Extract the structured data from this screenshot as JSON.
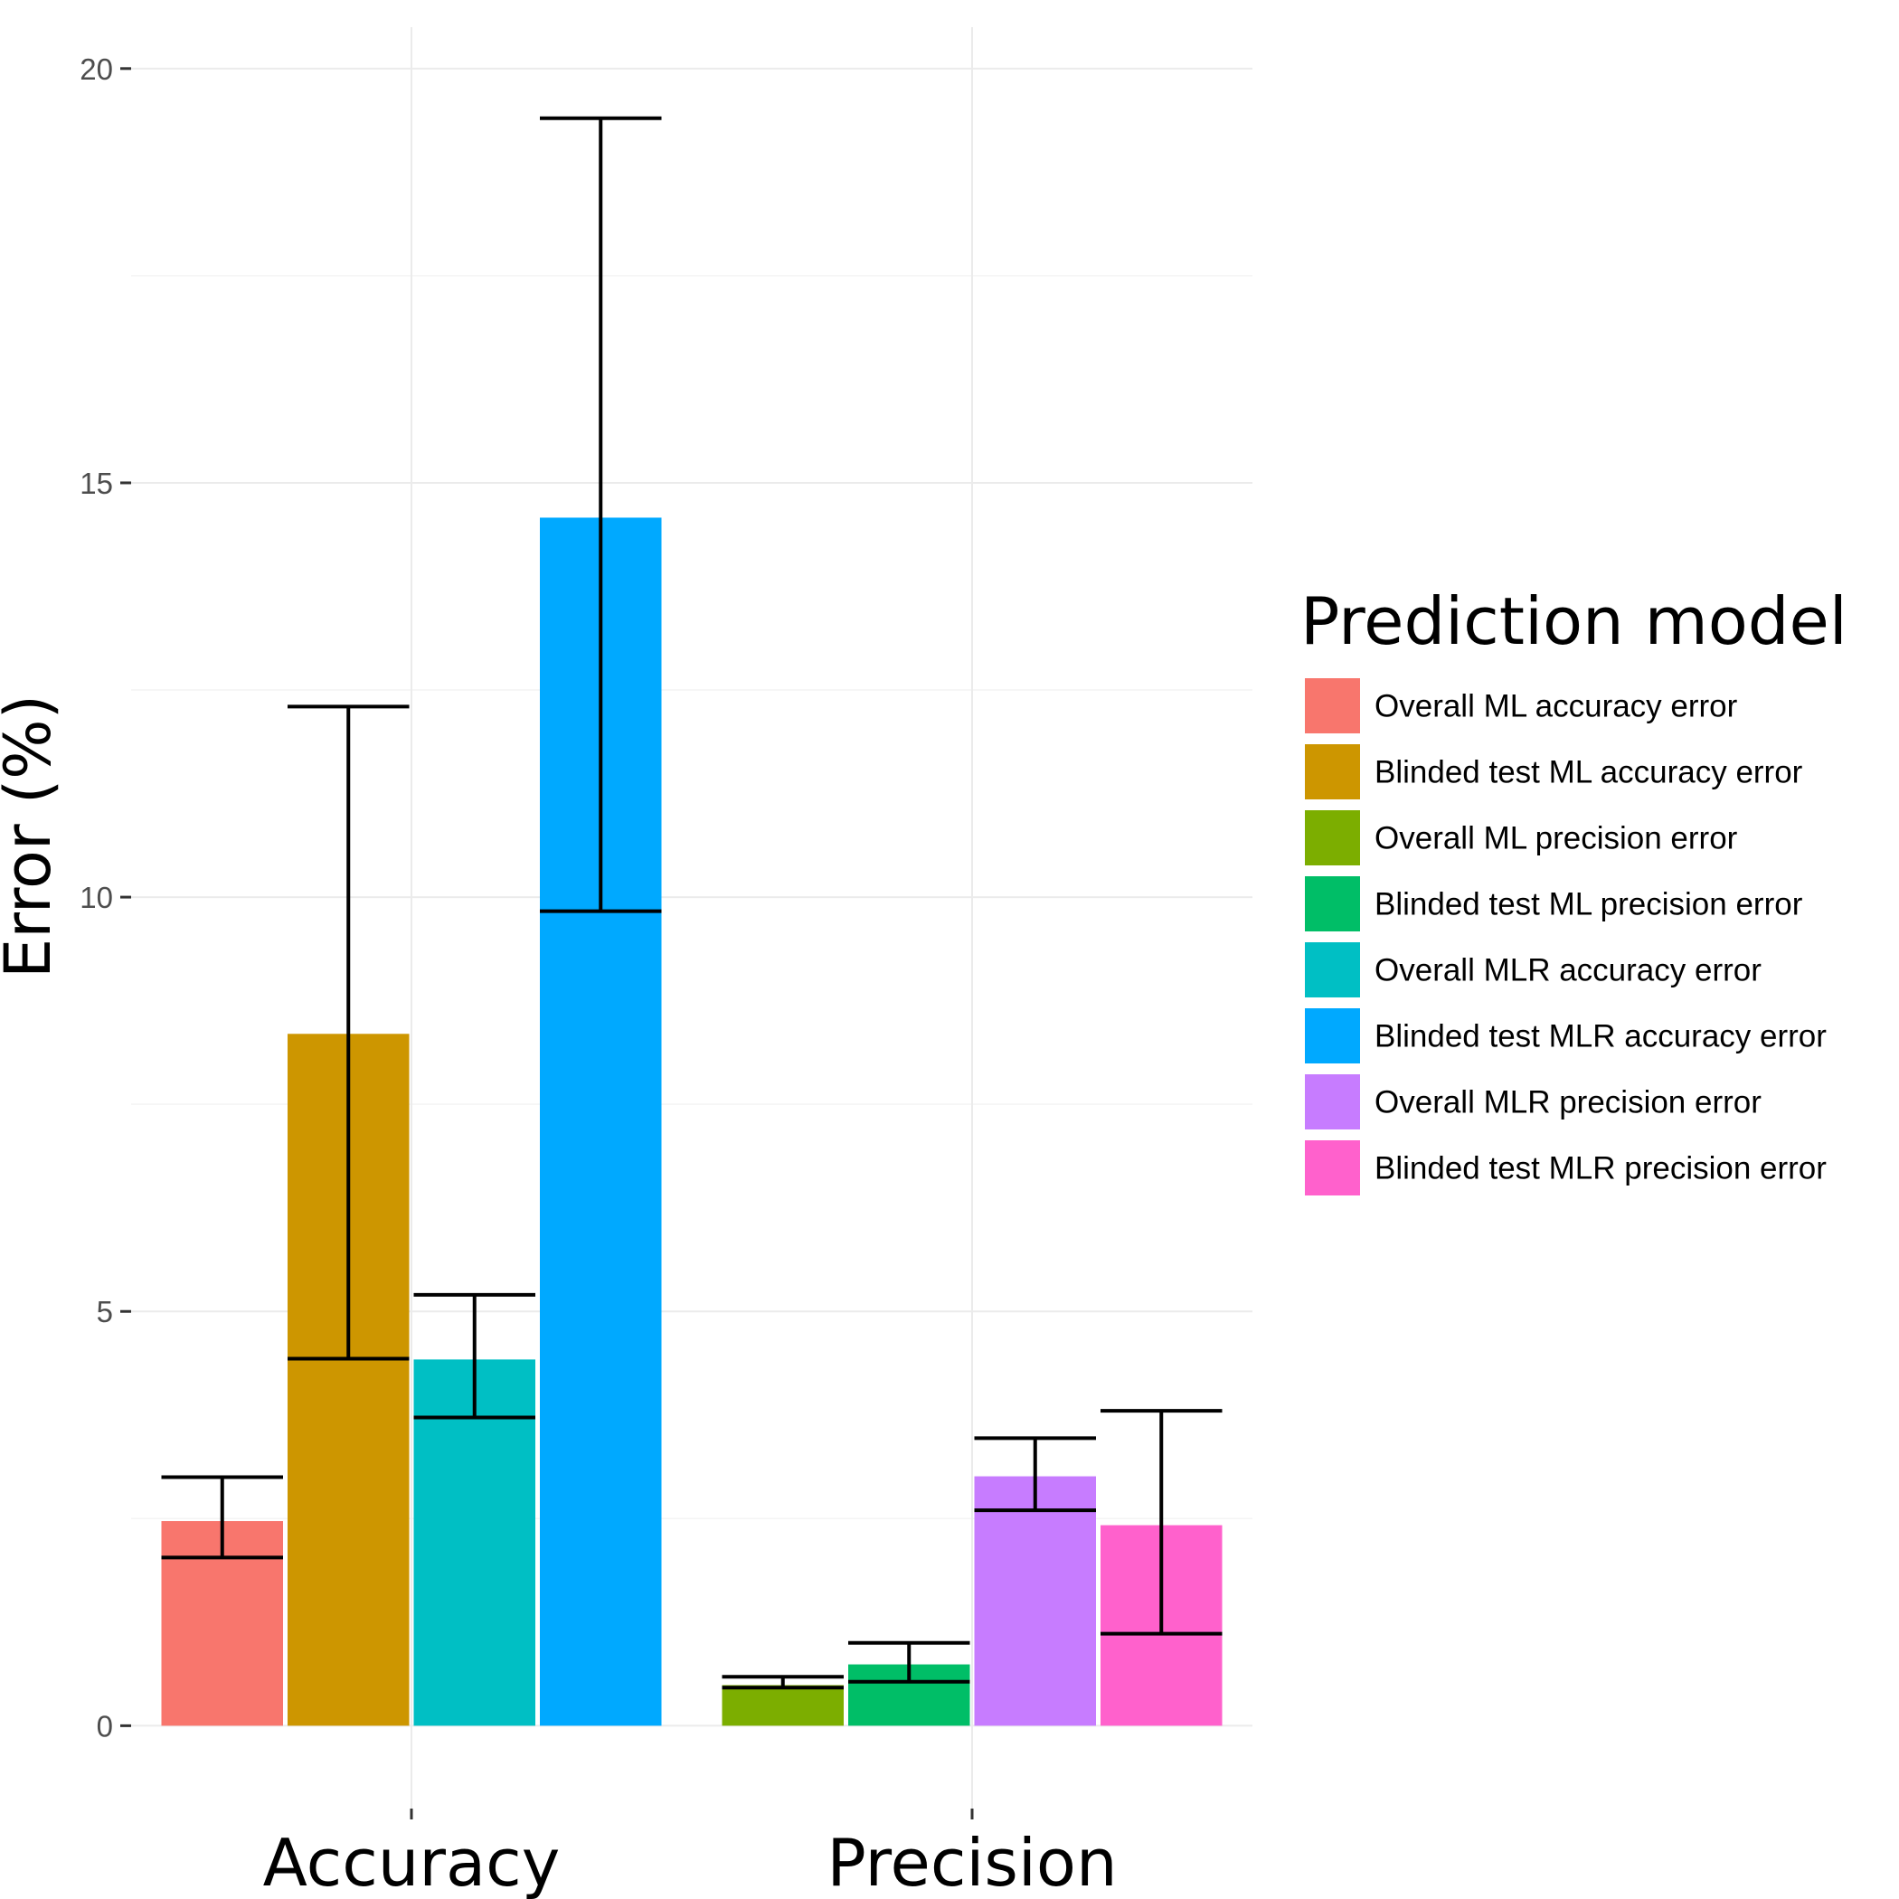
{
  "chart_data": {
    "type": "bar",
    "categories": [
      "Accuracy",
      "Precision"
    ],
    "ylabel": "Error (%)",
    "xlabel": "",
    "ylim": [
      -1,
      20.5
    ],
    "yticks": [
      0,
      5,
      10,
      15,
      20
    ],
    "grid": true,
    "legend": {
      "title": "Prediction model",
      "position": "right",
      "entries": [
        {
          "label": "Overall ML accuracy error",
          "color": "#F8766D"
        },
        {
          "label": "Blinded test ML accuracy error",
          "color": "#CD9600"
        },
        {
          "label": "Overall ML precision error",
          "color": "#7CAE00"
        },
        {
          "label": "Blinded test ML precision error",
          "color": "#00BE67"
        },
        {
          "label": "Overall MLR accuracy error",
          "color": "#00BFC4"
        },
        {
          "label": "Blinded test MLR accuracy error",
          "color": "#00A9FF"
        },
        {
          "label": "Overall MLR precision error",
          "color": "#C77CFF"
        },
        {
          "label": "Blinded test MLR precision error",
          "color": "#FF61CC"
        }
      ]
    },
    "bars": [
      {
        "category": "Accuracy",
        "series": "Overall ML accuracy error",
        "color": "#F8766D",
        "value": 2.47,
        "err_low": 2.03,
        "err_high": 3.0
      },
      {
        "category": "Accuracy",
        "series": "Blinded test ML accuracy error",
        "color": "#CD9600",
        "value": 8.35,
        "err_low": 4.43,
        "err_high": 12.3
      },
      {
        "category": "Accuracy",
        "series": "Overall MLR accuracy error",
        "color": "#00BFC4",
        "value": 4.42,
        "err_low": 3.72,
        "err_high": 5.2
      },
      {
        "category": "Accuracy",
        "series": "Blinded test MLR accuracy error",
        "color": "#00A9FF",
        "value": 14.58,
        "err_low": 9.83,
        "err_high": 19.4
      },
      {
        "category": "Precision",
        "series": "Overall ML precision error",
        "color": "#7CAE00",
        "value": 0.49,
        "err_low": 0.46,
        "err_high": 0.59
      },
      {
        "category": "Precision",
        "series": "Blinded test ML precision error",
        "color": "#00BE67",
        "value": 0.74,
        "err_low": 0.53,
        "err_high": 1.0
      },
      {
        "category": "Precision",
        "series": "Overall MLR precision error",
        "color": "#C77CFF",
        "value": 3.01,
        "err_low": 2.6,
        "err_high": 3.47
      },
      {
        "category": "Precision",
        "series": "Blinded test MLR precision error",
        "color": "#FF61CC",
        "value": 2.42,
        "err_low": 1.11,
        "err_high": 3.8
      }
    ]
  }
}
